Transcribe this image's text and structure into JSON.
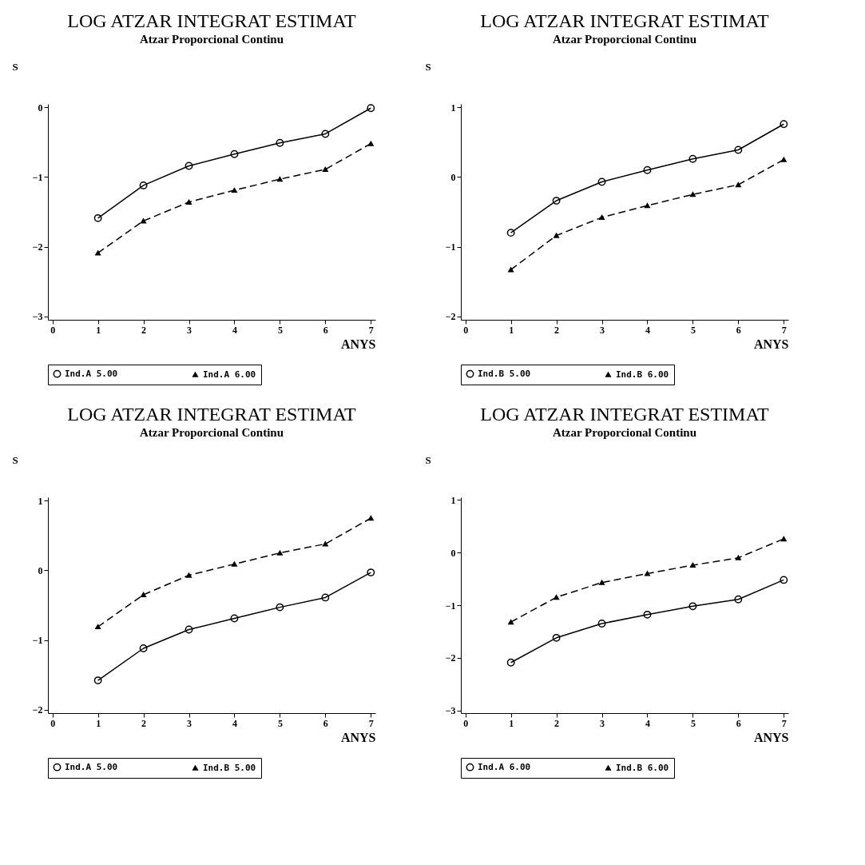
{
  "chart_data": [
    {
      "type": "line",
      "title": "LOG ATZAR INTEGRAT ESTIMAT",
      "subtitle": "Atzar Proporcional Continu",
      "xlabel": "ANYS",
      "ylabel": "S",
      "x": [
        1,
        2,
        3,
        4,
        5,
        6,
        7
      ],
      "xlim": [
        -0.1,
        7.1
      ],
      "xticks": [
        0,
        1,
        2,
        3,
        4,
        5,
        6,
        7
      ],
      "ylim": [
        -3.05,
        0.05
      ],
      "yticks": [
        -3,
        -2,
        -1,
        0
      ],
      "grid": false,
      "legend": "bottom",
      "series": [
        {
          "name": "Ind.A 5.00",
          "color": "#000000",
          "marker": "circle",
          "line_style": "solid",
          "values": [
            -1.59,
            -1.12,
            -0.84,
            -0.67,
            -0.51,
            -0.38,
            -0.01
          ]
        },
        {
          "name": "Ind.A 6.00",
          "color": "#000000",
          "marker": "triangle",
          "line_style": "dashed",
          "values": [
            -2.09,
            -1.63,
            -1.36,
            -1.19,
            -1.03,
            -0.89,
            -0.52
          ]
        }
      ]
    },
    {
      "type": "line",
      "title": "LOG ATZAR INTEGRAT ESTIMAT",
      "subtitle": "Atzar Proporcional Continu",
      "xlabel": "ANYS",
      "ylabel": "S",
      "x": [
        1,
        2,
        3,
        4,
        5,
        6,
        7
      ],
      "xlim": [
        -0.1,
        7.1
      ],
      "xticks": [
        0,
        1,
        2,
        3,
        4,
        5,
        6,
        7
      ],
      "ylim": [
        -2.05,
        1.05
      ],
      "yticks": [
        -2,
        -1,
        0,
        1
      ],
      "grid": false,
      "legend": "bottom",
      "series": [
        {
          "name": "Ind.B 5.00",
          "color": "#000000",
          "marker": "circle",
          "line_style": "solid",
          "values": [
            -0.8,
            -0.34,
            -0.07,
            0.1,
            0.26,
            0.39,
            0.76
          ]
        },
        {
          "name": "Ind.B 6.00",
          "color": "#000000",
          "marker": "triangle",
          "line_style": "dashed",
          "values": [
            -1.33,
            -0.84,
            -0.58,
            -0.41,
            -0.25,
            -0.11,
            0.25
          ]
        }
      ]
    },
    {
      "type": "line",
      "title": "LOG ATZAR INTEGRAT ESTIMAT",
      "subtitle": "Atzar Proporcional Continu",
      "xlabel": "ANYS",
      "ylabel": "S",
      "x": [
        1,
        2,
        3,
        4,
        5,
        6,
        7
      ],
      "xlim": [
        -0.1,
        7.1
      ],
      "xticks": [
        0,
        1,
        2,
        3,
        4,
        5,
        6,
        7
      ],
      "ylim": [
        -2.05,
        1.05
      ],
      "yticks": [
        -2,
        -1,
        0,
        1
      ],
      "grid": false,
      "legend": "bottom",
      "series": [
        {
          "name": "Ind.A 5.00",
          "color": "#000000",
          "marker": "circle",
          "line_style": "solid",
          "values": [
            -1.58,
            -1.12,
            -0.85,
            -0.69,
            -0.53,
            -0.39,
            -0.03
          ]
        },
        {
          "name": "Ind.B 5.00",
          "color": "#000000",
          "marker": "triangle",
          "line_style": "dashed",
          "values": [
            -0.81,
            -0.35,
            -0.07,
            0.09,
            0.25,
            0.38,
            0.75
          ]
        }
      ]
    },
    {
      "type": "line",
      "title": "LOG ATZAR INTEGRAT ESTIMAT",
      "subtitle": "Atzar Proporcional Continu",
      "xlabel": "ANYS",
      "ylabel": "S",
      "x": [
        1,
        2,
        3,
        4,
        5,
        6,
        7
      ],
      "xlim": [
        -0.1,
        7.1
      ],
      "xticks": [
        0,
        1,
        2,
        3,
        4,
        5,
        6,
        7
      ],
      "ylim": [
        -3.05,
        1.05
      ],
      "yticks": [
        -3,
        -2,
        -1,
        0,
        1
      ],
      "grid": false,
      "legend": "bottom",
      "series": [
        {
          "name": "Ind.A 6.00",
          "color": "#000000",
          "marker": "circle",
          "line_style": "solid",
          "values": [
            -2.09,
            -1.62,
            -1.35,
            -1.18,
            -1.02,
            -0.89,
            -0.52
          ]
        },
        {
          "name": "Ind.B 6.00",
          "color": "#000000",
          "marker": "triangle",
          "line_style": "dashed",
          "values": [
            -1.32,
            -0.85,
            -0.57,
            -0.4,
            -0.24,
            -0.1,
            0.26
          ]
        }
      ]
    }
  ]
}
